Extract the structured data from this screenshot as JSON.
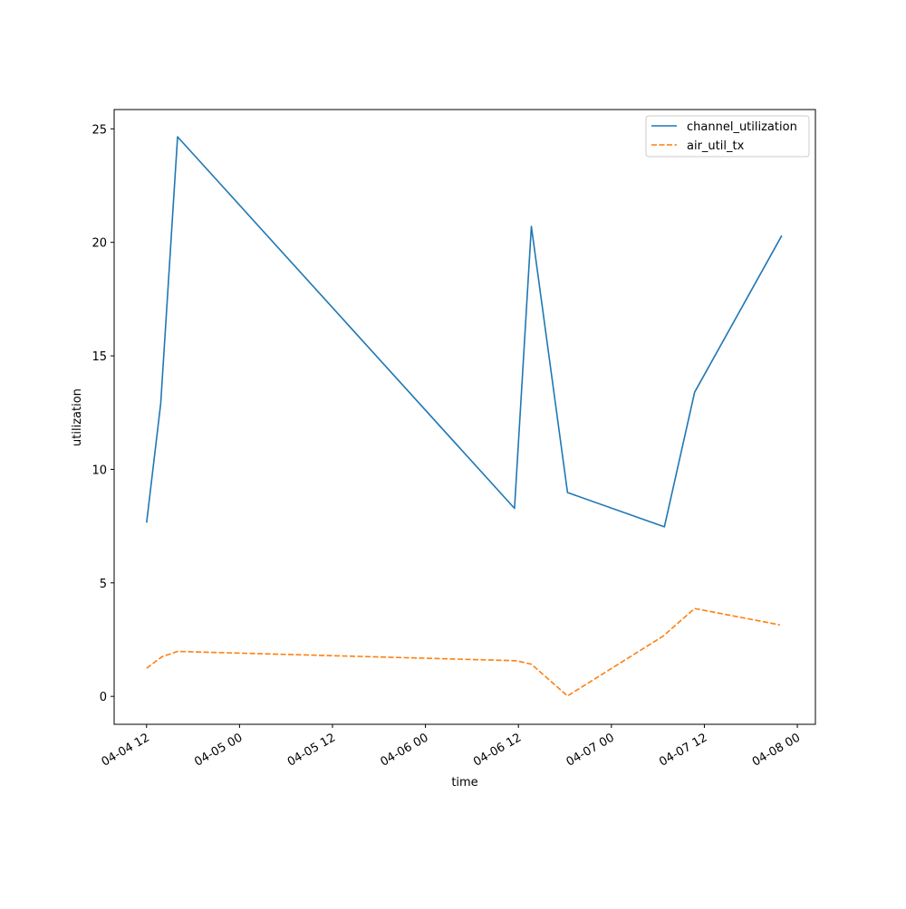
{
  "chart_data": {
    "type": "line",
    "xlabel": "time",
    "ylabel": "utilization",
    "x_ticks": [
      "04-04 12",
      "04-05 00",
      "04-05 12",
      "04-06 00",
      "04-06 12",
      "04-07 00",
      "04-07 12",
      "04-08 00"
    ],
    "y_ticks": [
      "0",
      "5",
      "10",
      "15",
      "20",
      "25"
    ],
    "xlim": [
      "2024-04-04T07:49",
      "2024-04-08T02:20"
    ],
    "ylim": [
      -1.23,
      25.85
    ],
    "grid": false,
    "legend_position": "upper right",
    "series": [
      {
        "name": "channel_utilization",
        "color": "#1f77b4",
        "style": "solid",
        "points": [
          {
            "x": "2024-04-04T12:00",
            "y": 7.65
          },
          {
            "x": "2024-04-04T13:50",
            "y": 12.9
          },
          {
            "x": "2024-04-04T16:00",
            "y": 24.65
          },
          {
            "x": "2024-04-06T11:30",
            "y": 8.28
          },
          {
            "x": "2024-04-06T13:40",
            "y": 20.7
          },
          {
            "x": "2024-04-06T18:20",
            "y": 8.98
          },
          {
            "x": "2024-04-07T06:50",
            "y": 7.47
          },
          {
            "x": "2024-04-07T10:45",
            "y": 13.4
          },
          {
            "x": "2024-04-07T22:00",
            "y": 20.3
          }
        ]
      },
      {
        "name": "air_util_tx",
        "color": "#ff7f0e",
        "style": "dashed",
        "points": [
          {
            "x": "2024-04-04T12:00",
            "y": 1.24
          },
          {
            "x": "2024-04-04T14:00",
            "y": 1.75
          },
          {
            "x": "2024-04-04T16:00",
            "y": 1.98
          },
          {
            "x": "2024-04-06T11:45",
            "y": 1.57
          },
          {
            "x": "2024-04-06T13:40",
            "y": 1.42
          },
          {
            "x": "2024-04-06T18:20",
            "y": 0.02
          },
          {
            "x": "2024-04-07T06:40",
            "y": 2.65
          },
          {
            "x": "2024-04-07T10:45",
            "y": 3.87
          },
          {
            "x": "2024-04-07T21:45",
            "y": 3.15
          }
        ]
      }
    ]
  }
}
